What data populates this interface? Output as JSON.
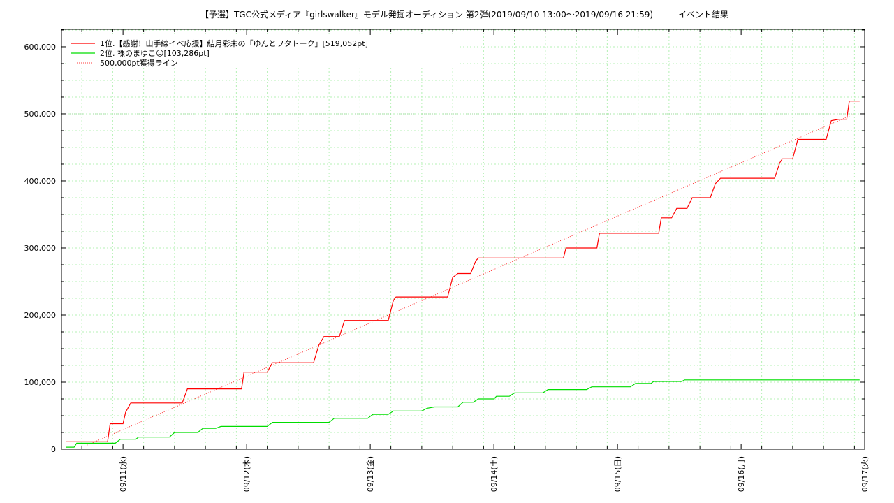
{
  "chart_data": {
    "type": "line",
    "title": "【予選】TGC公式メディア『girlswalker』モデル発掘オーディション 第2弾(2019/09/10 13:00～2019/09/16 21:59)　　　イベント結果",
    "xlabel": "",
    "ylabel": "",
    "x_ticks": [
      "09/11(水)",
      "09/12(木)",
      "09/13(金)",
      "09/14(土)",
      "09/15(日)",
      "09/16(月)",
      "09/17(火)"
    ],
    "y_ticks": [
      "0",
      "100,000",
      "200,000",
      "300,000",
      "400,000",
      "500,000",
      "600,000"
    ],
    "xlim": [
      "2019-09-10 13:00",
      "2019-09-17 00:00"
    ],
    "ylim": [
      0,
      600000
    ],
    "grid": true,
    "legend_position": "top-left",
    "series": [
      {
        "name": "1位.【感謝！山手線イベ応援】結月彩未の「ゆんとヲタトーク」[519,052pt]",
        "color": "#ff0000",
        "style": "solid",
        "points": [
          [
            "2019-09-10 13:00",
            11000
          ],
          [
            "2019-09-10 21:00",
            11000
          ],
          [
            "2019-09-10 21:30",
            38000
          ],
          [
            "2019-09-11 00:00",
            38000
          ],
          [
            "2019-09-11 00:30",
            55000
          ],
          [
            "2019-09-11 01:30",
            69000
          ],
          [
            "2019-09-11 11:30",
            69000
          ],
          [
            "2019-09-11 12:30",
            90000
          ],
          [
            "2019-09-11 23:00",
            90000
          ],
          [
            "2019-09-11 23:30",
            115000
          ],
          [
            "2019-09-12 04:00",
            115000
          ],
          [
            "2019-09-12 05:00",
            129000
          ],
          [
            "2019-09-12 13:00",
            129000
          ],
          [
            "2019-09-12 14:00",
            155000
          ],
          [
            "2019-09-12 15:00",
            168000
          ],
          [
            "2019-09-12 18:00",
            168000
          ],
          [
            "2019-09-12 19:00",
            192000
          ],
          [
            "2019-09-13 03:30",
            192000
          ],
          [
            "2019-09-13 04:30",
            222000
          ],
          [
            "2019-09-13 05:00",
            227000
          ],
          [
            "2019-09-13 15:00",
            227000
          ],
          [
            "2019-09-13 16:00",
            256000
          ],
          [
            "2019-09-13 17:00",
            262000
          ],
          [
            "2019-09-13 19:30",
            262000
          ],
          [
            "2019-09-13 20:30",
            281000
          ],
          [
            "2019-09-13 21:00",
            285000
          ],
          [
            "2019-09-14 13:30",
            285000
          ],
          [
            "2019-09-14 14:00",
            300000
          ],
          [
            "2019-09-14 20:00",
            300000
          ],
          [
            "2019-09-14 20:30",
            322000
          ],
          [
            "2019-09-15 08:00",
            322000
          ],
          [
            "2019-09-15 08:30",
            345000
          ],
          [
            "2019-09-15 10:30",
            345000
          ],
          [
            "2019-09-15 11:30",
            359000
          ],
          [
            "2019-09-15 13:30",
            359000
          ],
          [
            "2019-09-15 14:30",
            375000
          ],
          [
            "2019-09-15 18:00",
            375000
          ],
          [
            "2019-09-15 19:00",
            396000
          ],
          [
            "2019-09-15 20:00",
            404000
          ],
          [
            "2019-09-16 06:30",
            404000
          ],
          [
            "2019-09-16 07:30",
            427000
          ],
          [
            "2019-09-16 08:00",
            433000
          ],
          [
            "2019-09-16 10:00",
            433000
          ],
          [
            "2019-09-16 11:00",
            462000
          ],
          [
            "2019-09-16 16:30",
            462000
          ],
          [
            "2019-09-16 17:30",
            490000
          ],
          [
            "2019-09-16 19:00",
            492000
          ],
          [
            "2019-09-16 20:30",
            492000
          ],
          [
            "2019-09-16 21:00",
            519052
          ],
          [
            "2019-09-16 23:00",
            519052
          ]
        ]
      },
      {
        "name": "2位. 裸のまゆこ☺[103,286pt]",
        "color": "#00dd00",
        "style": "solid",
        "points": [
          [
            "2019-09-10 13:00",
            3000
          ],
          [
            "2019-09-10 14:30",
            3000
          ],
          [
            "2019-09-10 15:00",
            9000
          ],
          [
            "2019-09-10 22:30",
            9000
          ],
          [
            "2019-09-10 23:30",
            15000
          ],
          [
            "2019-09-11 02:30",
            15000
          ],
          [
            "2019-09-11 03:00",
            18000
          ],
          [
            "2019-09-11 09:00",
            18000
          ],
          [
            "2019-09-11 10:00",
            25000
          ],
          [
            "2019-09-11 14:30",
            25000
          ],
          [
            "2019-09-11 15:30",
            31000
          ],
          [
            "2019-09-11 18:00",
            31000
          ],
          [
            "2019-09-11 19:00",
            34000
          ],
          [
            "2019-09-12 04:00",
            34000
          ],
          [
            "2019-09-12 05:00",
            40000
          ],
          [
            "2019-09-12 16:00",
            40000
          ],
          [
            "2019-09-12 17:00",
            46000
          ],
          [
            "2019-09-12 23:30",
            46000
          ],
          [
            "2019-09-13 00:30",
            52000
          ],
          [
            "2019-09-13 03:30",
            52000
          ],
          [
            "2019-09-13 04:30",
            57000
          ],
          [
            "2019-09-13 10:00",
            57000
          ],
          [
            "2019-09-13 11:00",
            61000
          ],
          [
            "2019-09-13 12:30",
            63000
          ],
          [
            "2019-09-13 17:00",
            63000
          ],
          [
            "2019-09-13 18:00",
            70000
          ],
          [
            "2019-09-13 20:00",
            70000
          ],
          [
            "2019-09-13 21:00",
            75000
          ],
          [
            "2019-09-14 00:00",
            75000
          ],
          [
            "2019-09-14 00:30",
            79000
          ],
          [
            "2019-09-14 03:00",
            79000
          ],
          [
            "2019-09-14 04:00",
            84000
          ],
          [
            "2019-09-14 09:30",
            84000
          ],
          [
            "2019-09-14 10:30",
            89000
          ],
          [
            "2019-09-14 18:00",
            89000
          ],
          [
            "2019-09-14 19:00",
            93000
          ],
          [
            "2019-09-15 02:30",
            93000
          ],
          [
            "2019-09-15 03:30",
            98000
          ],
          [
            "2019-09-15 06:30",
            98000
          ],
          [
            "2019-09-15 07:00",
            101000
          ],
          [
            "2019-09-15 12:30",
            101000
          ],
          [
            "2019-09-15 13:00",
            103286
          ],
          [
            "2019-09-16 23:00",
            103286
          ]
        ]
      },
      {
        "name": "500,000pt獲得ライン",
        "color": "#ff0000",
        "style": "dotted",
        "points": [
          [
            "2019-09-10 17:00",
            6000
          ],
          [
            "2019-09-16 21:59",
            500000
          ]
        ]
      }
    ]
  }
}
